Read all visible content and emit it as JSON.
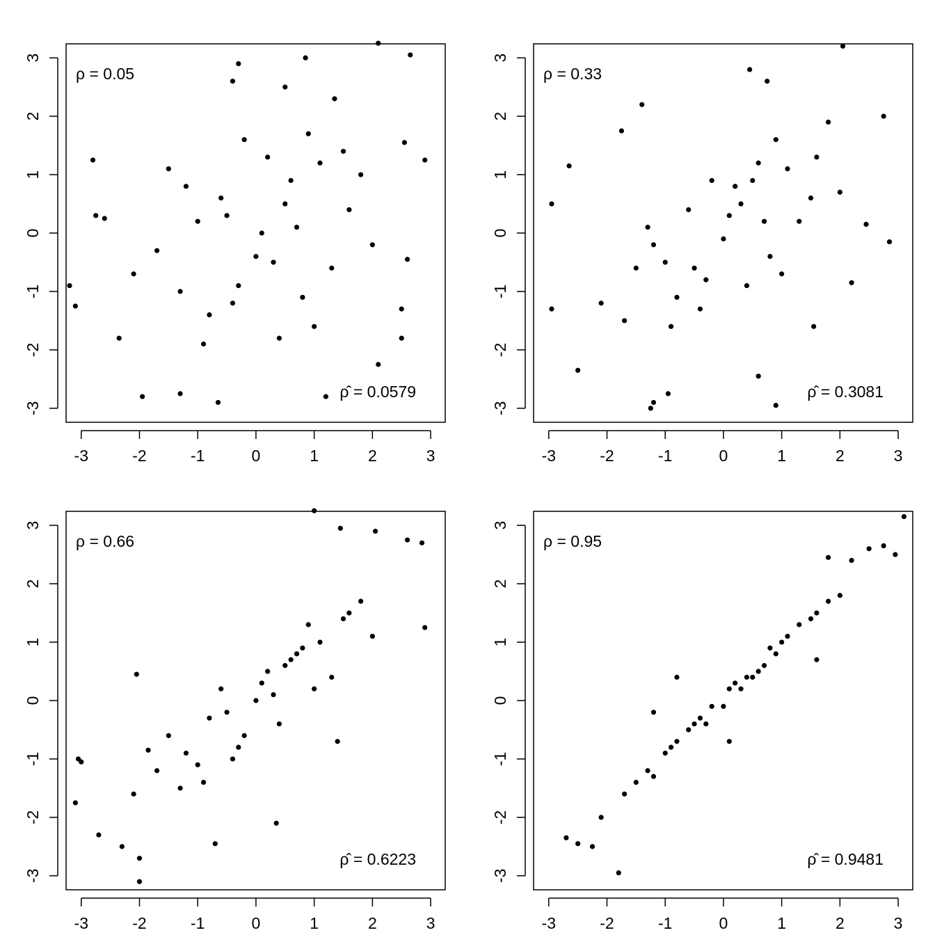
{
  "chart_data": [
    {
      "type": "scatter",
      "annotation": "ρ = 0.05",
      "estimate": "ρ̂ = 0.0579",
      "color": "#000000",
      "xlim": [
        -3.26,
        3.25
      ],
      "ylim": [
        -3.24,
        3.24
      ],
      "xticks": [
        -3,
        -2,
        -1,
        0,
        1,
        2,
        3
      ],
      "yticks": [
        -3,
        -2,
        -1,
        0,
        1,
        2,
        3
      ],
      "x": [
        -3.2,
        -3.1,
        -2.8,
        -2.75,
        2.9,
        2.65,
        2.1,
        0.85,
        -0.3,
        -0.65,
        -1.95,
        -1.3,
        1.2,
        2.1,
        -2.35,
        2.5,
        -0.4,
        0.5,
        1.35,
        2.55,
        2.6,
        -2.6,
        2.5,
        -0.5,
        0.3,
        1.1,
        -1.2,
        0.8,
        -0.2,
        0.1,
        1.6,
        -1.7,
        0.6,
        -0.8,
        1.3,
        -0.3,
        0.9,
        -1.0,
        0.4,
        -1.5,
        2.0,
        -0.6,
        0.2,
        1.8,
        -2.1,
        0.0,
        -0.9,
        1.5,
        0.7,
        -0.4,
        1.0,
        -1.3,
        0.5
      ],
      "y": [
        -0.9,
        -1.25,
        1.25,
        0.3,
        1.25,
        3.05,
        3.25,
        3.0,
        2.9,
        -2.9,
        -2.8,
        -2.75,
        -2.8,
        -2.25,
        -1.8,
        -1.8,
        2.6,
        2.5,
        2.3,
        1.55,
        -0.45,
        0.25,
        -1.3,
        0.3,
        -0.5,
        1.2,
        0.8,
        -1.1,
        1.6,
        0.0,
        0.4,
        -0.3,
        0.9,
        -1.4,
        -0.6,
        -0.9,
        1.7,
        0.2,
        -1.8,
        1.1,
        -0.2,
        0.6,
        1.3,
        1.0,
        -0.7,
        -0.4,
        -1.9,
        1.4,
        0.1,
        -1.2,
        -1.6,
        -1.0,
        0.5
      ]
    },
    {
      "type": "scatter",
      "annotation": "ρ = 0.33",
      "estimate": "ρ̂ = 0.3081",
      "color": "#000000",
      "xlim": [
        -3.26,
        3.25
      ],
      "ylim": [
        -3.24,
        3.24
      ],
      "xticks": [
        -3,
        -2,
        -1,
        0,
        1,
        2,
        3
      ],
      "yticks": [
        -3,
        -2,
        -1,
        0,
        1,
        2,
        3
      ],
      "x": [
        -2.95,
        -2.95,
        -2.65,
        -2.5,
        2.85,
        2.75,
        2.05,
        0.45,
        0.75,
        0.9,
        -1.25,
        -1.2,
        -0.95,
        -1.4,
        -1.75,
        2.45,
        2.2,
        1.55,
        0.6,
        -0.5,
        0.3,
        1.1,
        -1.2,
        0.8,
        -0.2,
        0.1,
        1.6,
        -1.7,
        0.6,
        -0.8,
        1.3,
        -0.3,
        0.9,
        -1.0,
        0.4,
        -1.5,
        2.0,
        -0.6,
        0.2,
        1.8,
        -2.1,
        0.0,
        -0.9,
        1.5,
        0.7,
        -0.4,
        1.0,
        -1.3,
        0.5
      ],
      "y": [
        0.5,
        -1.3,
        1.15,
        -2.35,
        -0.15,
        2.0,
        3.2,
        2.8,
        2.6,
        -2.95,
        -3.0,
        -2.9,
        -2.75,
        2.2,
        1.75,
        0.15,
        -0.85,
        -1.6,
        -2.45,
        -0.6,
        0.5,
        1.1,
        -0.2,
        -0.4,
        0.9,
        0.3,
        1.3,
        -1.5,
        1.2,
        -1.1,
        0.2,
        -0.8,
        1.6,
        -0.5,
        -0.9,
        -0.6,
        0.7,
        0.4,
        0.8,
        1.9,
        -1.2,
        -0.1,
        -1.6,
        0.6,
        0.2,
        -1.3,
        -0.7,
        0.1,
        0.9
      ]
    },
    {
      "type": "scatter",
      "annotation": "ρ = 0.66",
      "estimate": "ρ̂ = 0.6223",
      "color": "#000000",
      "xlim": [
        -3.26,
        3.25
      ],
      "ylim": [
        -3.24,
        3.24
      ],
      "xticks": [
        -3,
        -2,
        -1,
        0,
        1,
        2,
        3
      ],
      "yticks": [
        -3,
        -2,
        -1,
        0,
        1,
        2,
        3
      ],
      "x": [
        -3.05,
        -3.0,
        -3.1,
        -2.7,
        -2.3,
        -2.0,
        -2.0,
        2.9,
        2.85,
        2.6,
        2.05,
        1.45,
        1.0,
        -2.05,
        -1.85,
        0.35,
        -0.7,
        1.4,
        -0.5,
        0.3,
        1.1,
        -1.2,
        0.8,
        -0.2,
        0.1,
        1.6,
        -1.7,
        0.6,
        -0.8,
        1.3,
        -0.3,
        0.9,
        -1.0,
        0.4,
        -1.5,
        2.0,
        -0.6,
        0.2,
        1.8,
        -2.1,
        0.0,
        -0.9,
        1.5,
        0.7,
        -0.4,
        1.0,
        -1.3,
        0.5
      ],
      "y": [
        -1.0,
        -1.05,
        -1.75,
        -2.3,
        -2.5,
        -3.1,
        -2.7,
        1.25,
        2.7,
        2.75,
        2.9,
        2.95,
        3.25,
        0.45,
        -0.85,
        -2.1,
        -2.45,
        -0.7,
        -0.2,
        0.1,
        1.0,
        -0.9,
        0.9,
        -0.6,
        0.3,
        1.5,
        -1.2,
        0.7,
        -0.3,
        0.4,
        -0.8,
        1.3,
        -1.1,
        -0.4,
        -0.6,
        1.1,
        0.2,
        0.5,
        1.7,
        -1.6,
        0.0,
        -1.4,
        1.4,
        0.8,
        -1.0,
        0.2,
        -1.5,
        0.6
      ]
    },
    {
      "type": "scatter",
      "annotation": "ρ = 0.95",
      "estimate": "ρ̂ = 0.9481",
      "color": "#000000",
      "xlim": [
        -3.26,
        3.25
      ],
      "ylim": [
        -3.24,
        3.24
      ],
      "xticks": [
        -3,
        -2,
        -1,
        0,
        1,
        2,
        3
      ],
      "yticks": [
        -3,
        -2,
        -1,
        0,
        1,
        2,
        3
      ],
      "x": [
        -2.7,
        -2.5,
        -2.25,
        -1.8,
        3.1,
        2.95,
        2.75,
        2.5,
        2.2,
        1.8,
        -0.8,
        -1.2,
        1.6,
        0.1,
        -0.5,
        0.3,
        1.1,
        -1.2,
        0.8,
        -0.2,
        0.1,
        1.6,
        -1.7,
        0.6,
        -0.8,
        1.3,
        -0.3,
        0.9,
        -1.0,
        0.4,
        -1.5,
        2.0,
        -0.6,
        0.2,
        1.8,
        -2.1,
        0.0,
        -0.9,
        1.5,
        0.7,
        -0.4,
        1.0,
        -1.3,
        0.5
      ],
      "y": [
        -2.35,
        -2.45,
        -2.5,
        -2.95,
        3.15,
        2.5,
        2.65,
        2.6,
        2.4,
        2.45,
        0.4,
        -0.2,
        0.7,
        -0.7,
        -0.4,
        0.2,
        1.1,
        -1.3,
        0.9,
        -0.1,
        0.2,
        1.5,
        -1.6,
        0.5,
        -0.7,
        1.3,
        -0.4,
        0.8,
        -0.9,
        0.4,
        -1.4,
        1.8,
        -0.5,
        0.3,
        1.7,
        -2.0,
        -0.1,
        -0.8,
        1.4,
        0.6,
        -0.3,
        1.0,
        -1.2,
        0.4
      ]
    }
  ]
}
